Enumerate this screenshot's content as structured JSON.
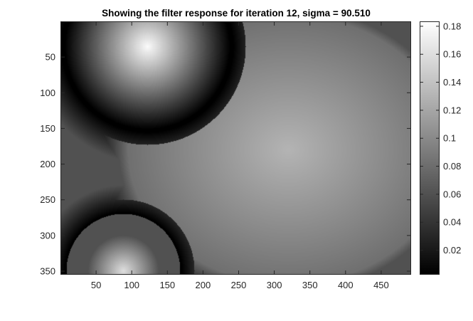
{
  "chart_data": {
    "type": "heatmap",
    "title": "Showing the filter response for iteration 12, sigma = 90.510",
    "colormap": "gray",
    "xlim": [
      1,
      491
    ],
    "ylim": [
      1,
      354
    ],
    "y_direction": "reverse",
    "xticks": [
      50,
      100,
      150,
      200,
      250,
      300,
      350,
      400,
      450
    ],
    "yticks": [
      50,
      100,
      150,
      200,
      250,
      300,
      350
    ],
    "colorbar": {
      "range": [
        0.003,
        0.183
      ],
      "ticks": [
        0.02,
        0.04,
        0.06,
        0.08,
        0.1,
        0.12,
        0.14,
        0.16,
        0.18
      ],
      "tick_labels": [
        "0.02",
        "0.04",
        "0.06",
        "0.08",
        "0.1",
        "0.12",
        "0.14",
        "0.16",
        "0.18"
      ]
    },
    "blobs": [
      {
        "x": 122,
        "y": 35,
        "peak": 0.18,
        "zero_radius": 118
      },
      {
        "x": 88,
        "y": 350,
        "peak": 0.16,
        "zero_radius": 80
      },
      {
        "x": 320,
        "y": 180,
        "peak": 0.13,
        "ring_x": 245,
        "ring_y": 205
      }
    ],
    "background_level": 0.06
  }
}
